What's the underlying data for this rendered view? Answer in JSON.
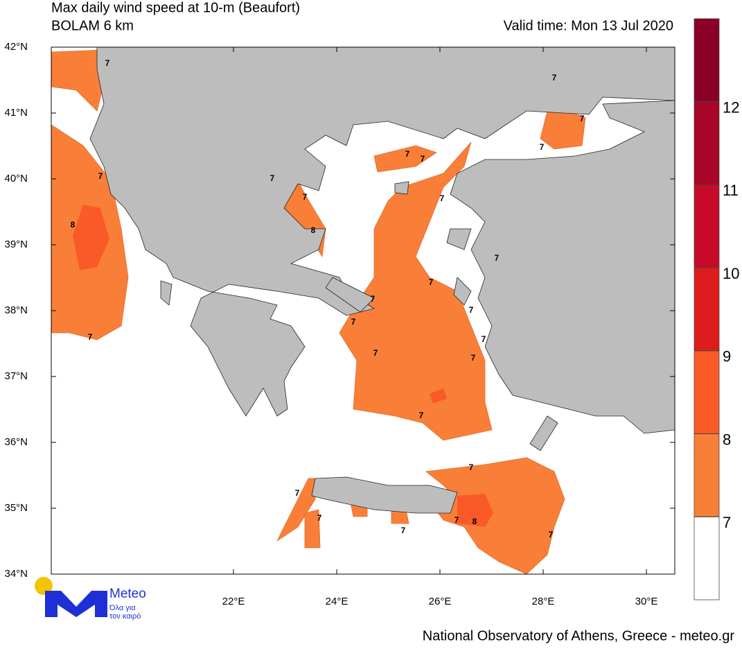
{
  "header": {
    "title": "Max daily wind speed at 10-m (Beaufort)",
    "model": "BOLAM 6 km",
    "valid_time": "Valid time: Mon 13 Jul 2020"
  },
  "map": {
    "lon_range": [
      18.47,
      30.55
    ],
    "lat_range": [
      34,
      42
    ],
    "lat_ticks": [
      {
        "value": 34,
        "label": "34°N"
      },
      {
        "value": 35,
        "label": "35°N"
      },
      {
        "value": 36,
        "label": "36°N"
      },
      {
        "value": 37,
        "label": "37°N"
      },
      {
        "value": 38,
        "label": "38°N"
      },
      {
        "value": 39,
        "label": "39°N"
      },
      {
        "value": 40,
        "label": "40°N"
      },
      {
        "value": 41,
        "label": "41°N"
      },
      {
        "value": 42,
        "label": "42°N"
      }
    ],
    "lon_ticks": [
      {
        "value": 22,
        "label": "22°E"
      },
      {
        "value": 24,
        "label": "24°E"
      },
      {
        "value": 26,
        "label": "26°E"
      },
      {
        "value": 28,
        "label": "28°E"
      },
      {
        "value": 30,
        "label": "30°E"
      }
    ],
    "contour_labels": [
      7,
      7,
      8,
      7,
      7,
      7,
      8,
      7,
      7,
      7,
      7,
      7,
      7,
      7,
      7,
      7,
      7,
      7,
      7,
      7,
      7,
      7,
      7,
      8,
      7,
      7,
      7,
      7,
      7
    ]
  },
  "colorbar": {
    "levels": [
      7,
      8,
      9,
      10,
      11,
      12
    ],
    "colors": [
      "#ffffff",
      "#f97f38",
      "#fa5a28",
      "#dd1d1d",
      "#c70a2a",
      "#a80528",
      "#8b0028"
    ]
  },
  "logo": {
    "name": "Meteo",
    "tagline_1": "Όλα για",
    "tagline_2": "τον καιρό"
  },
  "footer": "National Observatory of Athens, Greece - meteo.gr"
}
